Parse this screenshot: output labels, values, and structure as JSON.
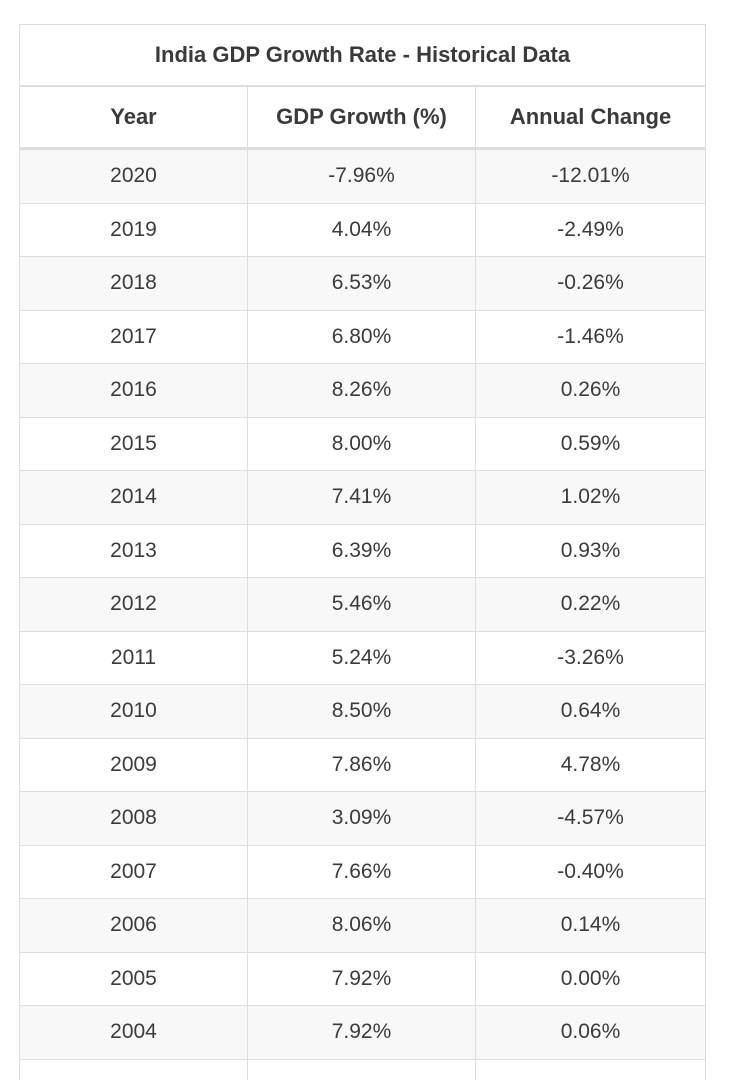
{
  "table": {
    "title": "India GDP Growth Rate - Historical Data",
    "headers": [
      "Year",
      "GDP Growth (%)",
      "Annual Change"
    ],
    "rows": [
      [
        "2020",
        "-7.96%",
        "-12.01%"
      ],
      [
        "2019",
        "4.04%",
        "-2.49%"
      ],
      [
        "2018",
        "6.53%",
        "-0.26%"
      ],
      [
        "2017",
        "6.80%",
        "-1.46%"
      ],
      [
        "2016",
        "8.26%",
        "0.26%"
      ],
      [
        "2015",
        "8.00%",
        "0.59%"
      ],
      [
        "2014",
        "7.41%",
        "1.02%"
      ],
      [
        "2013",
        "6.39%",
        "0.93%"
      ],
      [
        "2012",
        "5.46%",
        "0.22%"
      ],
      [
        "2011",
        "5.24%",
        "-3.26%"
      ],
      [
        "2010",
        "8.50%",
        "0.64%"
      ],
      [
        "2009",
        "7.86%",
        "4.78%"
      ],
      [
        "2008",
        "3.09%",
        "-4.57%"
      ],
      [
        "2007",
        "7.66%",
        "-0.40%"
      ],
      [
        "2006",
        "8.06%",
        "0.14%"
      ],
      [
        "2005",
        "7.92%",
        "0.00%"
      ],
      [
        "2004",
        "7.92%",
        "0.06%"
      ]
    ]
  },
  "colors": {
    "border": "#dddddd",
    "stripe": "#f8f8f8",
    "text": "#333333"
  }
}
